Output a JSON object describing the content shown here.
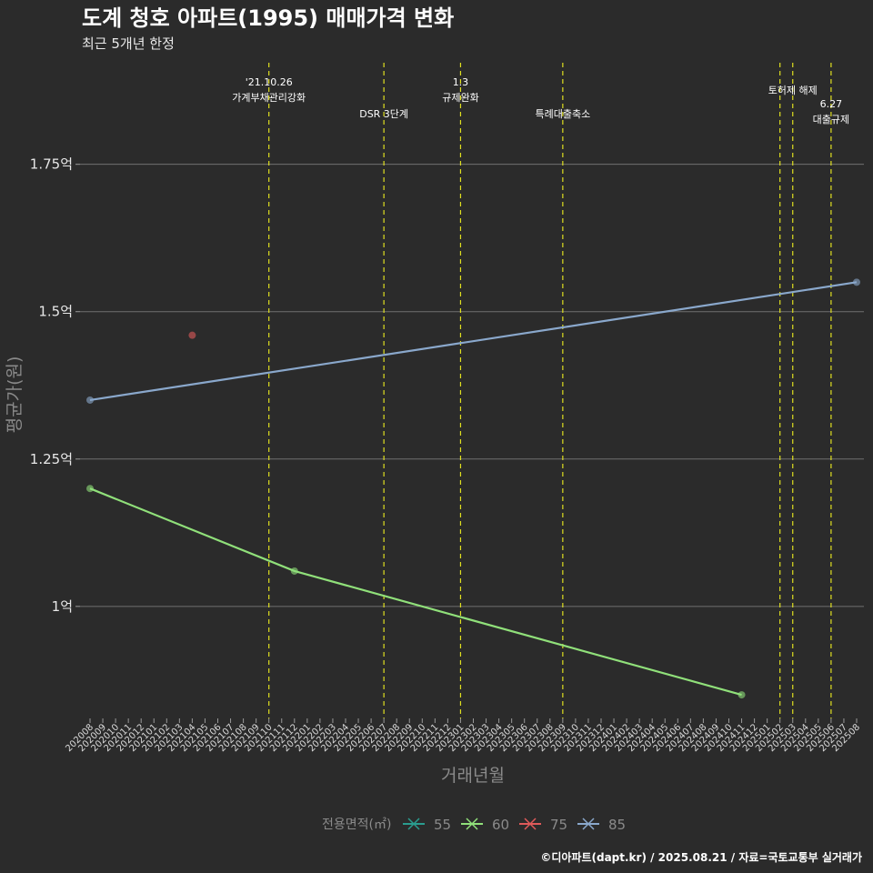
{
  "chart_data": {
    "type": "line",
    "title": "도계 청호 아파트(1995) 매매가격 변화",
    "subtitle": "최근 5개년 한정",
    "xlabel": "거래년월",
    "ylabel": "평균가(원)",
    "ylim": [
      0.81,
      1.93
    ],
    "y_ticks": [
      {
        "value": 1.0,
        "label": "1억"
      },
      {
        "value": 1.25,
        "label": "1.25억"
      },
      {
        "value": 1.5,
        "label": "1.5억"
      },
      {
        "value": 1.75,
        "label": "1.75억"
      }
    ],
    "x_categories": [
      "202008",
      "202009",
      "202010",
      "202011",
      "202012",
      "202101",
      "202102",
      "202103",
      "202104",
      "202105",
      "202106",
      "202107",
      "202108",
      "202109",
      "202110",
      "202111",
      "202112",
      "202201",
      "202202",
      "202203",
      "202204",
      "202205",
      "202206",
      "202207",
      "202208",
      "202209",
      "202210",
      "202211",
      "202212",
      "202301",
      "202302",
      "202303",
      "202304",
      "202305",
      "202306",
      "202307",
      "202308",
      "202309",
      "202310",
      "202311",
      "202312",
      "202401",
      "202402",
      "202403",
      "202404",
      "202405",
      "202406",
      "202407",
      "202408",
      "202409",
      "202410",
      "202411",
      "202412",
      "202501",
      "202502",
      "202503",
      "202504",
      "202505",
      "202506",
      "202507",
      "202508"
    ],
    "events": [
      {
        "x": "202110",
        "lines": [
          "'21.10.26",
          "가계부채관리강화"
        ],
        "level": "top"
      },
      {
        "x": "202207",
        "lines": [
          "DSR 3단계"
        ],
        "level": "low"
      },
      {
        "x": "202301",
        "lines": [
          "1.3",
          "규제완화"
        ],
        "level": "top"
      },
      {
        "x": "202309",
        "lines": [
          "특례대출축소"
        ],
        "level": "low"
      },
      {
        "x": "202502",
        "lines": [],
        "level": "mid"
      },
      {
        "x": "202503",
        "lines": [
          "토허제 해제"
        ],
        "level": "mid"
      },
      {
        "x": "202506",
        "lines": [
          "6.27",
          "대출규제"
        ],
        "level": "low2"
      }
    ],
    "event_color": "#e0e020",
    "series": [
      {
        "name": "55",
        "color": "#2a9d8f",
        "points": []
      },
      {
        "name": "60",
        "color": "#90e07a",
        "points": [
          {
            "x": "202008",
            "y": 1.2
          },
          {
            "x": "202112",
            "y": 1.06
          },
          {
            "x": "202411",
            "y": 0.85
          }
        ]
      },
      {
        "name": "75",
        "color": "#e05a5a",
        "points": [
          {
            "x": "202104",
            "y": 1.46
          }
        ]
      },
      {
        "name": "85",
        "color": "#8aa8cc",
        "points": [
          {
            "x": "202008",
            "y": 1.35
          },
          {
            "x": "202508",
            "y": 1.55
          }
        ]
      }
    ],
    "legend_title": "전용면적(㎡)",
    "legend_position": "bottom",
    "grid": true,
    "caption": "©디아파트(dapt.kr) / 2025.08.21 / 자료=국토교통부 실거래가"
  }
}
